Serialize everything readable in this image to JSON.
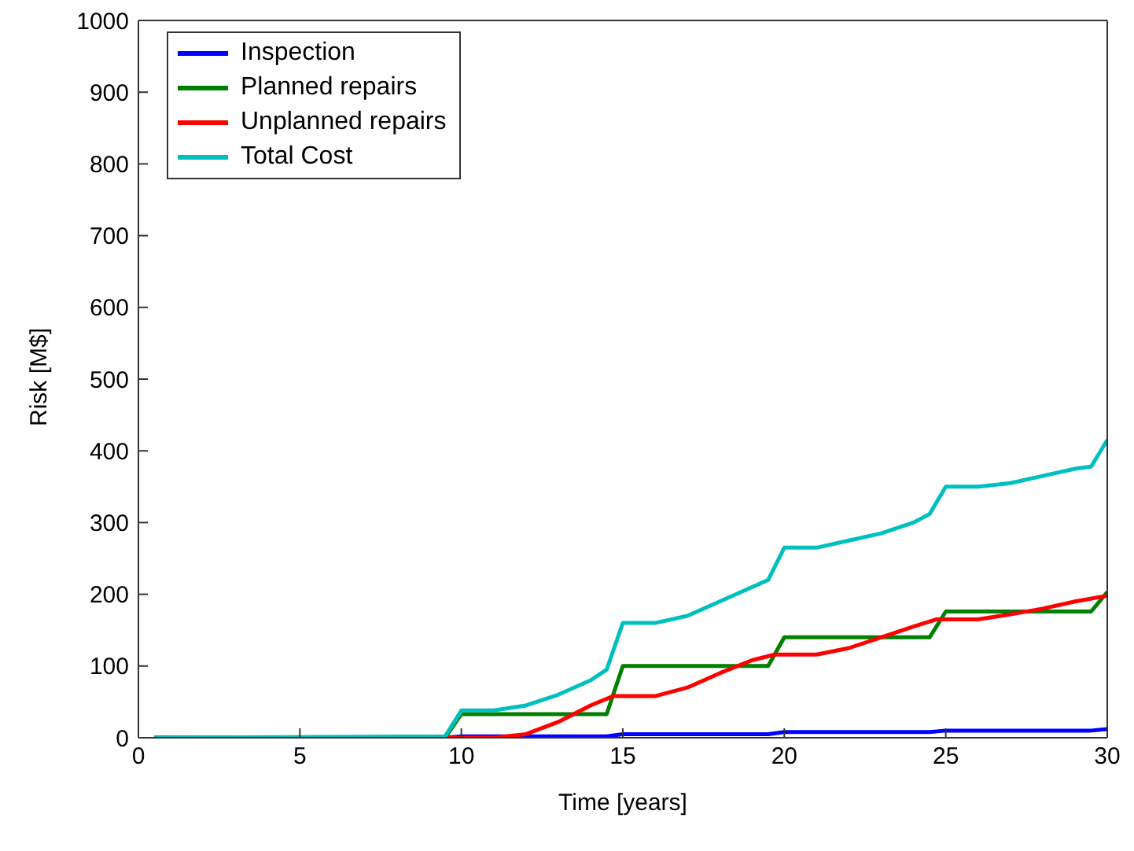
{
  "chart_data": {
    "type": "line",
    "xlabel": "Time [years]",
    "ylabel": "Risk [M$]",
    "xlim": [
      0,
      30
    ],
    "xticks": [
      0,
      5,
      10,
      15,
      20,
      25,
      30
    ],
    "ylim": [
      0,
      1000
    ],
    "yticks": [
      0,
      100,
      200,
      300,
      400,
      500,
      600,
      700,
      800,
      900,
      1000
    ],
    "grid": false,
    "legend": "top left",
    "marker": "none",
    "line_style": "solid",
    "series": [
      {
        "name": "Inspection",
        "color": "#0000ff",
        "x": [
          0.5,
          9.5,
          10,
          14.5,
          15,
          19.5,
          20,
          24.5,
          25,
          29.5,
          30
        ],
        "values": [
          0,
          0,
          2,
          2,
          5,
          5,
          8,
          8,
          10,
          10,
          12
        ]
      },
      {
        "name": "Planned repairs",
        "color": "#008000",
        "x": [
          0.5,
          9.5,
          10,
          14.5,
          15,
          19.5,
          20,
          24.5,
          25,
          29.5,
          30
        ],
        "values": [
          0,
          0,
          33,
          33,
          100,
          100,
          140,
          140,
          176,
          176,
          203
        ]
      },
      {
        "name": "Unplanned repairs",
        "color": "#ff0000",
        "x": [
          0.5,
          11,
          12,
          13,
          14,
          14.7,
          16,
          17,
          18,
          19,
          19.7,
          21,
          22,
          23,
          24,
          24.7,
          26,
          27,
          28,
          29,
          30
        ],
        "values": [
          0,
          0,
          5,
          22,
          45,
          58,
          58,
          70,
          90,
          108,
          116,
          116,
          125,
          140,
          155,
          165,
          165,
          172,
          180,
          190,
          198
        ]
      },
      {
        "name": "Total Cost",
        "color": "#00bfbf",
        "x": [
          0.5,
          9.5,
          10,
          11,
          12,
          13,
          14,
          14.5,
          15,
          16,
          17,
          18,
          19,
          19.5,
          20,
          21,
          22,
          23,
          24,
          24.5,
          25,
          26,
          27,
          28,
          29,
          29.5,
          30
        ],
        "values": [
          0,
          2,
          38,
          38,
          45,
          60,
          80,
          95,
          160,
          160,
          170,
          190,
          210,
          220,
          265,
          265,
          275,
          285,
          300,
          312,
          350,
          350,
          355,
          365,
          375,
          378,
          415
        ]
      }
    ]
  }
}
